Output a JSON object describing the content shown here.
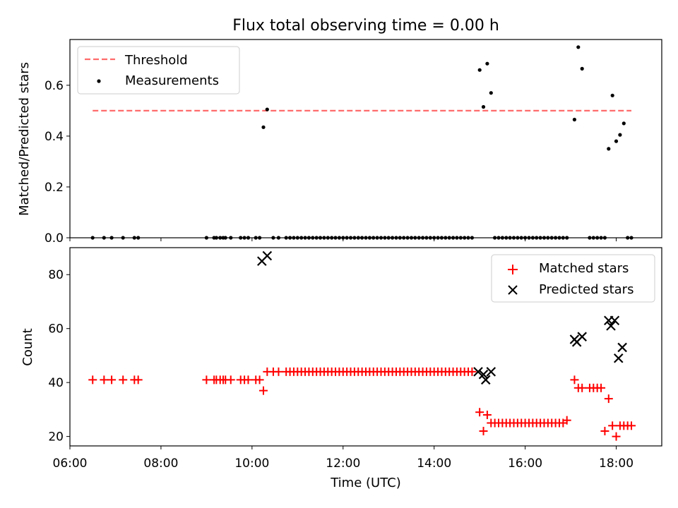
{
  "figure_title": "Flux total observing time = 0.00 h",
  "chart_data": [
    {
      "type": "scatter",
      "title": "Flux total observing time = 0.00 h",
      "xlabel": "",
      "ylabel": "Matched/Predicted stars",
      "xlim": [
        "06:00",
        "19:00"
      ],
      "ylim": [
        0,
        0.78
      ],
      "yticks": [
        "0.0",
        "0.2",
        "0.4",
        "0.6"
      ],
      "legend_position": "upper-left",
      "threshold": {
        "name": "Threshold",
        "value": 0.5,
        "x_start": "06:30",
        "x_end": "18:20",
        "color": "#ff6b6b"
      },
      "series": [
        {
          "name": "Measurements",
          "color": "#000000",
          "points": [
            [
              "06:30",
              0
            ],
            [
              "06:45",
              0
            ],
            [
              "06:55",
              0
            ],
            [
              "07:10",
              0
            ],
            [
              "07:25",
              0
            ],
            [
              "07:30",
              0
            ],
            [
              "09:00",
              0
            ],
            [
              "09:10",
              0
            ],
            [
              "09:13",
              0
            ],
            [
              "09:18",
              0
            ],
            [
              "09:22",
              0
            ],
            [
              "09:25",
              0
            ],
            [
              "09:32",
              0
            ],
            [
              "09:45",
              0
            ],
            [
              "09:50",
              0
            ],
            [
              "09:55",
              0
            ],
            [
              "10:05",
              0
            ],
            [
              "10:10",
              0
            ],
            [
              "10:15",
              0.435
            ],
            [
              "10:20",
              0.505
            ],
            [
              "10:28",
              0
            ],
            [
              "10:35",
              0
            ],
            [
              "10:45",
              0
            ],
            [
              "10:50",
              0
            ],
            [
              "10:55",
              0
            ],
            [
              "11:00",
              0
            ],
            [
              "11:05",
              0
            ],
            [
              "11:10",
              0
            ],
            [
              "11:15",
              0
            ],
            [
              "11:20",
              0
            ],
            [
              "11:25",
              0
            ],
            [
              "11:30",
              0
            ],
            [
              "11:35",
              0
            ],
            [
              "11:40",
              0
            ],
            [
              "11:45",
              0
            ],
            [
              "11:50",
              0
            ],
            [
              "11:55",
              0
            ],
            [
              "12:00",
              0
            ],
            [
              "12:05",
              0
            ],
            [
              "12:10",
              0
            ],
            [
              "12:15",
              0
            ],
            [
              "12:20",
              0
            ],
            [
              "12:25",
              0
            ],
            [
              "12:30",
              0
            ],
            [
              "12:35",
              0
            ],
            [
              "12:40",
              0
            ],
            [
              "12:45",
              0
            ],
            [
              "12:50",
              0
            ],
            [
              "12:55",
              0
            ],
            [
              "13:00",
              0
            ],
            [
              "13:05",
              0
            ],
            [
              "13:10",
              0
            ],
            [
              "13:15",
              0
            ],
            [
              "13:20",
              0
            ],
            [
              "13:25",
              0
            ],
            [
              "13:30",
              0
            ],
            [
              "13:35",
              0
            ],
            [
              "13:40",
              0
            ],
            [
              "13:45",
              0
            ],
            [
              "13:50",
              0
            ],
            [
              "13:55",
              0
            ],
            [
              "14:00",
              0
            ],
            [
              "14:05",
              0
            ],
            [
              "14:10",
              0
            ],
            [
              "14:15",
              0
            ],
            [
              "14:20",
              0
            ],
            [
              "14:25",
              0
            ],
            [
              "14:30",
              0
            ],
            [
              "14:35",
              0
            ],
            [
              "14:40",
              0
            ],
            [
              "14:45",
              0
            ],
            [
              "14:50",
              0
            ],
            [
              "15:00",
              0.66
            ],
            [
              "15:05",
              0.515
            ],
            [
              "15:10",
              0.685
            ],
            [
              "15:15",
              0.57
            ],
            [
              "15:20",
              0
            ],
            [
              "15:25",
              0
            ],
            [
              "15:30",
              0
            ],
            [
              "15:35",
              0
            ],
            [
              "15:40",
              0
            ],
            [
              "15:45",
              0
            ],
            [
              "15:50",
              0
            ],
            [
              "15:55",
              0
            ],
            [
              "16:00",
              0
            ],
            [
              "16:05",
              0
            ],
            [
              "16:10",
              0
            ],
            [
              "16:15",
              0
            ],
            [
              "16:20",
              0
            ],
            [
              "16:25",
              0
            ],
            [
              "16:30",
              0
            ],
            [
              "16:35",
              0
            ],
            [
              "16:40",
              0
            ],
            [
              "16:45",
              0
            ],
            [
              "16:50",
              0
            ],
            [
              "16:55",
              0
            ],
            [
              "17:05",
              0.465
            ],
            [
              "17:10",
              0.75
            ],
            [
              "17:15",
              0.665
            ],
            [
              "17:25",
              0
            ],
            [
              "17:30",
              0
            ],
            [
              "17:35",
              0
            ],
            [
              "17:40",
              0
            ],
            [
              "17:45",
              0
            ],
            [
              "17:50",
              0.35
            ],
            [
              "17:55",
              0.56
            ],
            [
              "18:00",
              0.38
            ],
            [
              "18:05",
              0.405
            ],
            [
              "18:10",
              0.45
            ],
            [
              "18:15",
              0
            ],
            [
              "18:20",
              0
            ]
          ]
        }
      ]
    },
    {
      "type": "scatter",
      "title": "",
      "xlabel": "Time (UTC)",
      "ylabel": "Count",
      "xlim": [
        "06:00",
        "19:00"
      ],
      "ylim": [
        16.5,
        90
      ],
      "xticks": [
        "06:00",
        "08:00",
        "10:00",
        "12:00",
        "14:00",
        "16:00",
        "18:00"
      ],
      "yticks": [
        "20",
        "40",
        "60",
        "80"
      ],
      "legend_position": "upper-right",
      "series": [
        {
          "name": "Matched stars",
          "marker": "plus",
          "color": "#ff0000",
          "points": [
            [
              "06:30",
              41
            ],
            [
              "06:45",
              41
            ],
            [
              "06:55",
              41
            ],
            [
              "07:10",
              41
            ],
            [
              "07:25",
              41
            ],
            [
              "07:30",
              41
            ],
            [
              "09:00",
              41
            ],
            [
              "09:10",
              41
            ],
            [
              "09:13",
              41
            ],
            [
              "09:18",
              41
            ],
            [
              "09:22",
              41
            ],
            [
              "09:25",
              41
            ],
            [
              "09:32",
              41
            ],
            [
              "09:45",
              41
            ],
            [
              "09:50",
              41
            ],
            [
              "09:55",
              41
            ],
            [
              "10:05",
              41
            ],
            [
              "10:10",
              41
            ],
            [
              "10:15",
              37
            ],
            [
              "10:20",
              44
            ],
            [
              "10:28",
              44
            ],
            [
              "10:35",
              44
            ],
            [
              "10:45",
              44
            ],
            [
              "10:50",
              44
            ],
            [
              "10:55",
              44
            ],
            [
              "11:00",
              44
            ],
            [
              "11:05",
              44
            ],
            [
              "11:10",
              44
            ],
            [
              "11:15",
              44
            ],
            [
              "11:20",
              44
            ],
            [
              "11:25",
              44
            ],
            [
              "11:30",
              44
            ],
            [
              "11:35",
              44
            ],
            [
              "11:40",
              44
            ],
            [
              "11:45",
              44
            ],
            [
              "11:50",
              44
            ],
            [
              "11:55",
              44
            ],
            [
              "12:00",
              44
            ],
            [
              "12:05",
              44
            ],
            [
              "12:10",
              44
            ],
            [
              "12:15",
              44
            ],
            [
              "12:20",
              44
            ],
            [
              "12:25",
              44
            ],
            [
              "12:30",
              44
            ],
            [
              "12:35",
              44
            ],
            [
              "12:40",
              44
            ],
            [
              "12:45",
              44
            ],
            [
              "12:50",
              44
            ],
            [
              "12:55",
              44
            ],
            [
              "13:00",
              44
            ],
            [
              "13:05",
              44
            ],
            [
              "13:10",
              44
            ],
            [
              "13:15",
              44
            ],
            [
              "13:20",
              44
            ],
            [
              "13:25",
              44
            ],
            [
              "13:30",
              44
            ],
            [
              "13:35",
              44
            ],
            [
              "13:40",
              44
            ],
            [
              "13:45",
              44
            ],
            [
              "13:50",
              44
            ],
            [
              "13:55",
              44
            ],
            [
              "14:00",
              44
            ],
            [
              "14:05",
              44
            ],
            [
              "14:10",
              44
            ],
            [
              "14:15",
              44
            ],
            [
              "14:20",
              44
            ],
            [
              "14:25",
              44
            ],
            [
              "14:30",
              44
            ],
            [
              "14:35",
              44
            ],
            [
              "14:40",
              44
            ],
            [
              "14:45",
              44
            ],
            [
              "14:50",
              44
            ],
            [
              "15:00",
              29
            ],
            [
              "15:05",
              22
            ],
            [
              "15:10",
              28
            ],
            [
              "15:15",
              25
            ],
            [
              "15:20",
              25
            ],
            [
              "15:25",
              25
            ],
            [
              "15:30",
              25
            ],
            [
              "15:35",
              25
            ],
            [
              "15:40",
              25
            ],
            [
              "15:45",
              25
            ],
            [
              "15:50",
              25
            ],
            [
              "15:55",
              25
            ],
            [
              "16:00",
              25
            ],
            [
              "16:05",
              25
            ],
            [
              "16:10",
              25
            ],
            [
              "16:15",
              25
            ],
            [
              "16:20",
              25
            ],
            [
              "16:25",
              25
            ],
            [
              "16:30",
              25
            ],
            [
              "16:35",
              25
            ],
            [
              "16:40",
              25
            ],
            [
              "16:45",
              25
            ],
            [
              "16:50",
              25
            ],
            [
              "16:55",
              26
            ],
            [
              "17:05",
              41
            ],
            [
              "17:10",
              38
            ],
            [
              "17:15",
              38
            ],
            [
              "17:25",
              38
            ],
            [
              "17:30",
              38
            ],
            [
              "17:35",
              38
            ],
            [
              "17:40",
              38
            ],
            [
              "17:45",
              22
            ],
            [
              "17:50",
              34
            ],
            [
              "17:55",
              24
            ],
            [
              "18:00",
              20
            ],
            [
              "18:05",
              24
            ],
            [
              "18:10",
              24
            ],
            [
              "18:15",
              24
            ],
            [
              "18:20",
              24
            ]
          ]
        },
        {
          "name": "Predicted stars",
          "marker": "x",
          "color": "#000000",
          "points": [
            [
              "10:13",
              85
            ],
            [
              "10:20",
              87
            ],
            [
              "14:58",
              44
            ],
            [
              "15:05",
              43
            ],
            [
              "15:08",
              41
            ],
            [
              "15:15",
              44
            ],
            [
              "17:05",
              56
            ],
            [
              "17:08",
              55
            ],
            [
              "17:15",
              57
            ],
            [
              "17:50",
              63
            ],
            [
              "17:53",
              61
            ],
            [
              "17:58",
              63
            ],
            [
              "18:03",
              49
            ],
            [
              "18:08",
              53
            ]
          ]
        }
      ]
    }
  ]
}
